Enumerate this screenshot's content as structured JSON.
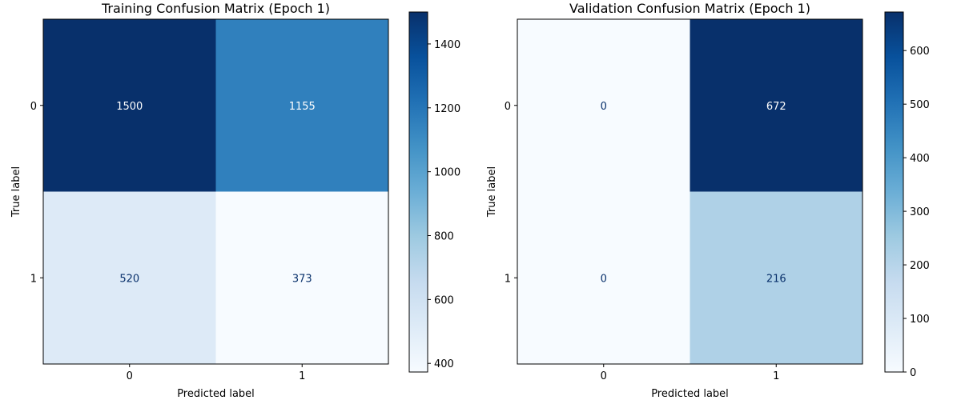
{
  "chart_data": [
    {
      "type": "heatmap",
      "title": "Training Confusion Matrix (Epoch 1)",
      "xlabel": "Predicted label",
      "ylabel": "True label",
      "x_categories": [
        "0",
        "1"
      ],
      "y_categories": [
        "0",
        "1"
      ],
      "values": [
        [
          1500,
          1155
        ],
        [
          520,
          373
        ]
      ],
      "colormap": "Blues",
      "colorbar": {
        "min": 373,
        "max": 1500,
        "ticks": [
          400,
          600,
          800,
          1000,
          1200,
          1400
        ]
      }
    },
    {
      "type": "heatmap",
      "title": "Validation Confusion Matrix (Epoch 1)",
      "xlabel": "Predicted label",
      "ylabel": "True label",
      "x_categories": [
        "0",
        "1"
      ],
      "y_categories": [
        "0",
        "1"
      ],
      "values": [
        [
          0,
          672
        ],
        [
          0,
          216
        ]
      ],
      "colormap": "Blues",
      "colorbar": {
        "min": 0,
        "max": 672,
        "ticks": [
          0,
          100,
          200,
          300,
          400,
          500,
          600
        ]
      }
    }
  ]
}
